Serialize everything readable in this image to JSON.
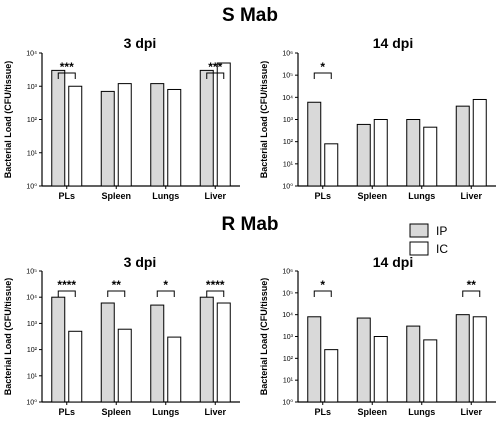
{
  "sections": [
    {
      "title": "S Mab"
    },
    {
      "title": "R Mab"
    }
  ],
  "legend": {
    "entries": [
      {
        "label": "IP",
        "color": "#d9d9d9"
      },
      {
        "label": "IC",
        "color": "#ffffff"
      }
    ]
  },
  "chart_data": [
    {
      "type": "bar",
      "section": "S Mab",
      "title": "3 dpi",
      "ylabel": "Bacterial Load (CFU/tissue)",
      "scale": "log",
      "ylim": [
        1,
        10000
      ],
      "yticks": [
        "10⁰",
        "10¹",
        "10²",
        "10³",
        "10⁴"
      ],
      "categories": [
        "PLs",
        "Spleen",
        "Lungs",
        "Liver"
      ],
      "series": [
        {
          "name": "IP",
          "values": [
            3000,
            700,
            1200,
            3000
          ]
        },
        {
          "name": "IC",
          "values": [
            1000,
            1200,
            800,
            5000
          ]
        }
      ],
      "significance": [
        {
          "category": "PLs",
          "label": "***"
        },
        {
          "category": "Liver",
          "label": "***"
        }
      ]
    },
    {
      "type": "bar",
      "section": "S Mab",
      "title": "14 dpi",
      "ylabel": "Bacterial Load (CFU/tissue)",
      "scale": "log",
      "ylim": [
        1,
        1000000
      ],
      "yticks": [
        "10⁰",
        "10¹",
        "10²",
        "10³",
        "10⁴",
        "10⁵",
        "10⁶"
      ],
      "categories": [
        "PLs",
        "Spleen",
        "Lungs",
        "Liver"
      ],
      "series": [
        {
          "name": "IP",
          "values": [
            6000,
            600,
            1000,
            4000
          ]
        },
        {
          "name": "IC",
          "values": [
            80,
            1000,
            450,
            8000
          ]
        }
      ],
      "significance": [
        {
          "category": "PLs",
          "label": "*"
        }
      ]
    },
    {
      "type": "bar",
      "section": "R Mab",
      "title": "3 dpi",
      "ylabel": "Bacterial Load (CFU/tissue)",
      "scale": "log",
      "ylim": [
        1,
        100000
      ],
      "yticks": [
        "10⁰",
        "10¹",
        "10²",
        "10³",
        "10⁴",
        "10⁵"
      ],
      "categories": [
        "PLs",
        "Spleen",
        "Lungs",
        "Liver"
      ],
      "series": [
        {
          "name": "IP",
          "values": [
            10000,
            6000,
            5000,
            10000
          ]
        },
        {
          "name": "IC",
          "values": [
            500,
            600,
            300,
            6000
          ]
        }
      ],
      "significance": [
        {
          "category": "PLs",
          "label": "****"
        },
        {
          "category": "Spleen",
          "label": "**"
        },
        {
          "category": "Lungs",
          "label": "*"
        },
        {
          "category": "Liver",
          "label": "****"
        }
      ]
    },
    {
      "type": "bar",
      "section": "R Mab",
      "title": "14 dpi",
      "ylabel": "Bacterial Load (CFU/tissue)",
      "scale": "log",
      "ylim": [
        1,
        1000000
      ],
      "yticks": [
        "10⁰",
        "10¹",
        "10²",
        "10³",
        "10⁴",
        "10⁵",
        "10⁶"
      ],
      "categories": [
        "PLs",
        "Spleen",
        "Lungs",
        "Liver"
      ],
      "series": [
        {
          "name": "IP",
          "values": [
            8000,
            7000,
            3000,
            10000
          ]
        },
        {
          "name": "IC",
          "values": [
            250,
            1000,
            700,
            8000
          ]
        }
      ],
      "significance": [
        {
          "category": "PLs",
          "label": "*"
        },
        {
          "category": "Liver",
          "label": "**"
        }
      ]
    }
  ]
}
